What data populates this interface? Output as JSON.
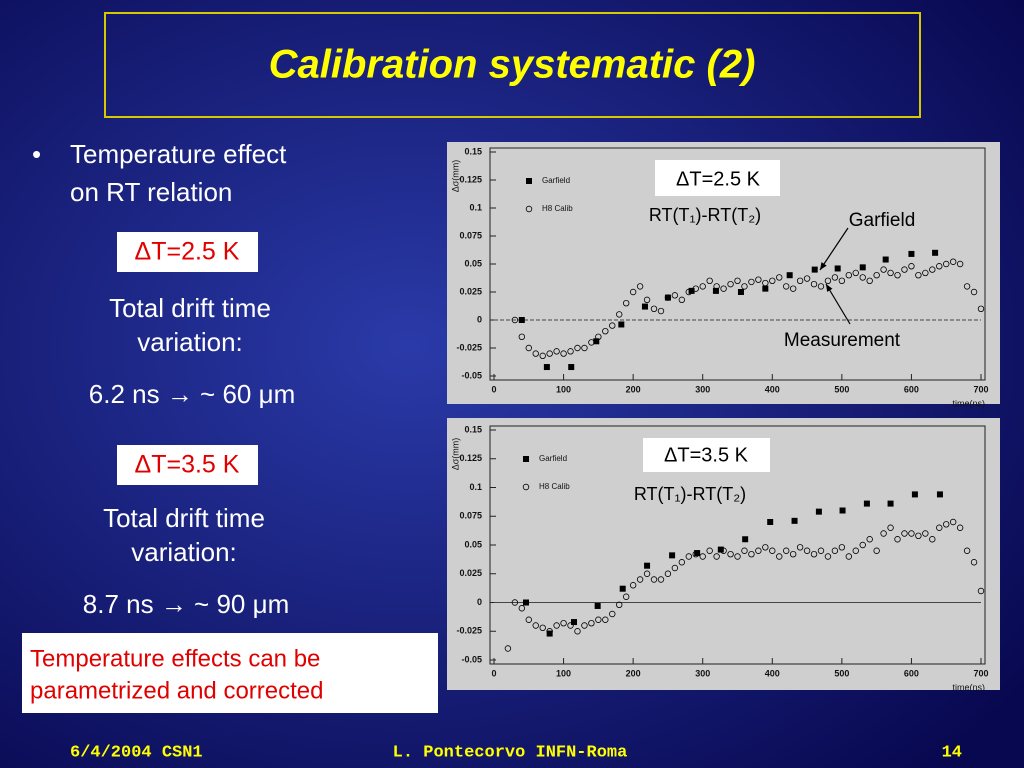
{
  "slide": {
    "title": "Calibration systematic (2)",
    "bullet": "•",
    "bullet_lines": [
      "Temperature effect",
      "on RT relation"
    ],
    "blocks": [
      {
        "delta": "ΔT=2.5 K",
        "lines": [
          "Total drift time",
          "variation:"
        ],
        "result": "6.2 ns → ~ 60 μm"
      },
      {
        "delta": "ΔT=3.5 K",
        "lines": [
          "Total drift time",
          "variation:"
        ],
        "result": "8.7 ns → ~ 90 μm"
      }
    ],
    "note_lines": [
      "Temperature effects can be",
      "parametrized and corrected"
    ],
    "footer": {
      "left": "6/4/2004 CSN1",
      "center": "L. Pontecorvo INFN-Roma",
      "right": "14"
    }
  },
  "chart_data": [
    {
      "type": "scatter",
      "ylabel": "Δσ(mm)",
      "xlabel": "time(ns)",
      "xlim": [
        0,
        700
      ],
      "ylim": [
        -0.05,
        0.15
      ],
      "xticks": [
        0,
        100,
        200,
        300,
        400,
        500,
        600,
        700
      ],
      "yticks": [
        -0.05,
        -0.025,
        0,
        0.025,
        0.05,
        0.075,
        0.1,
        0.125,
        0.15
      ],
      "zero_line": "dashed",
      "annotations": [
        "ΔT=2.5 K",
        "RT(T₁)-RT(T₂)",
        "Garfield",
        "Measurement"
      ],
      "series": [
        {
          "name": "Garfield",
          "marker": "square",
          "color": "#000000",
          "x": [
            40,
            76,
            111,
            147,
            183,
            217,
            250,
            284,
            319,
            355,
            390,
            425,
            461,
            494,
            530,
            563,
            600,
            634
          ],
          "values": [
            0,
            -0.042,
            -0.042,
            -0.019,
            -0.004,
            0.012,
            0.02,
            0.026,
            0.026,
            0.025,
            0.028,
            0.04,
            0.045,
            0.046,
            0.047,
            0.054,
            0.059,
            0.06
          ]
        },
        {
          "name": "H8 Calib",
          "marker": "circle",
          "color": "#000000",
          "x": [
            30,
            40,
            50,
            60,
            70,
            80,
            90,
            100,
            110,
            120,
            130,
            140,
            150,
            160,
            170,
            180,
            190,
            200,
            210,
            220,
            230,
            240,
            250,
            260,
            270,
            280,
            290,
            300,
            310,
            320,
            330,
            340,
            350,
            360,
            370,
            380,
            390,
            400,
            410,
            420,
            430,
            440,
            450,
            460,
            470,
            480,
            490,
            500,
            510,
            520,
            530,
            540,
            550,
            560,
            570,
            580,
            590,
            600,
            610,
            620,
            630,
            640,
            650,
            660,
            670,
            680,
            690,
            700
          ],
          "values": [
            0,
            -0.015,
            -0.025,
            -0.03,
            -0.032,
            -0.03,
            -0.028,
            -0.03,
            -0.028,
            -0.025,
            -0.025,
            -0.02,
            -0.015,
            -0.01,
            -0.005,
            0.005,
            0.015,
            0.025,
            0.03,
            0.018,
            0.01,
            0.008,
            0.02,
            0.022,
            0.018,
            0.025,
            0.028,
            0.03,
            0.035,
            0.03,
            0.028,
            0.032,
            0.035,
            0.03,
            0.034,
            0.036,
            0.033,
            0.035,
            0.038,
            0.03,
            0.028,
            0.035,
            0.037,
            0.032,
            0.03,
            0.035,
            0.038,
            0.035,
            0.04,
            0.042,
            0.038,
            0.035,
            0.04,
            0.045,
            0.042,
            0.04,
            0.045,
            0.048,
            0.04,
            0.042,
            0.045,
            0.048,
            0.05,
            0.052,
            0.05,
            0.03,
            0.025,
            0.01
          ]
        }
      ]
    },
    {
      "type": "scatter",
      "ylabel": "Δσ(mm)",
      "xlabel": "time(ns)",
      "xlim": [
        0,
        700
      ],
      "ylim": [
        -0.05,
        0.15
      ],
      "xticks": [
        0,
        100,
        200,
        300,
        400,
        500,
        600,
        700
      ],
      "yticks": [
        -0.05,
        -0.025,
        0,
        0.025,
        0.05,
        0.075,
        0.1,
        0.125,
        0.15
      ],
      "zero_line": "solid",
      "annotations": [
        "ΔT=3.5 K",
        "RT(T₁)-RT(T₂)"
      ],
      "series": [
        {
          "name": "Garfield",
          "marker": "square",
          "color": "#000000",
          "x": [
            46,
            80,
            115,
            149,
            185,
            220,
            256,
            292,
            326,
            361,
            397,
            432,
            467,
            501,
            536,
            570,
            605,
            641
          ],
          "values": [
            0,
            -0.027,
            -0.017,
            -0.003,
            0.012,
            0.032,
            0.041,
            0.043,
            0.046,
            0.055,
            0.07,
            0.071,
            0.079,
            0.08,
            0.086,
            0.086,
            0.094,
            0.094
          ]
        },
        {
          "name": "H8 Calib",
          "marker": "circle",
          "color": "#000000",
          "x": [
            20,
            30,
            40,
            50,
            60,
            70,
            80,
            90,
            100,
            110,
            120,
            130,
            140,
            150,
            160,
            170,
            180,
            190,
            200,
            210,
            220,
            230,
            240,
            250,
            260,
            270,
            280,
            290,
            300,
            310,
            320,
            330,
            340,
            350,
            360,
            370,
            380,
            390,
            400,
            410,
            420,
            430,
            440,
            450,
            460,
            470,
            480,
            490,
            500,
            510,
            520,
            530,
            540,
            550,
            560,
            570,
            580,
            590,
            600,
            610,
            620,
            630,
            640,
            650,
            660,
            670,
            680,
            690,
            700
          ],
          "values": [
            -0.04,
            0,
            -0.005,
            -0.015,
            -0.02,
            -0.022,
            -0.025,
            -0.02,
            -0.018,
            -0.02,
            -0.025,
            -0.02,
            -0.018,
            -0.015,
            -0.015,
            -0.01,
            -0.002,
            0.005,
            0.015,
            0.02,
            0.025,
            0.02,
            0.02,
            0.025,
            0.03,
            0.035,
            0.04,
            0.042,
            0.04,
            0.045,
            0.04,
            0.045,
            0.042,
            0.04,
            0.045,
            0.042,
            0.045,
            0.048,
            0.045,
            0.04,
            0.045,
            0.042,
            0.048,
            0.045,
            0.042,
            0.045,
            0.04,
            0.045,
            0.048,
            0.04,
            0.045,
            0.05,
            0.055,
            0.045,
            0.06,
            0.065,
            0.055,
            0.06,
            0.06,
            0.058,
            0.06,
            0.055,
            0.065,
            0.068,
            0.07,
            0.065,
            0.045,
            0.035,
            0.01
          ]
        }
      ]
    }
  ]
}
